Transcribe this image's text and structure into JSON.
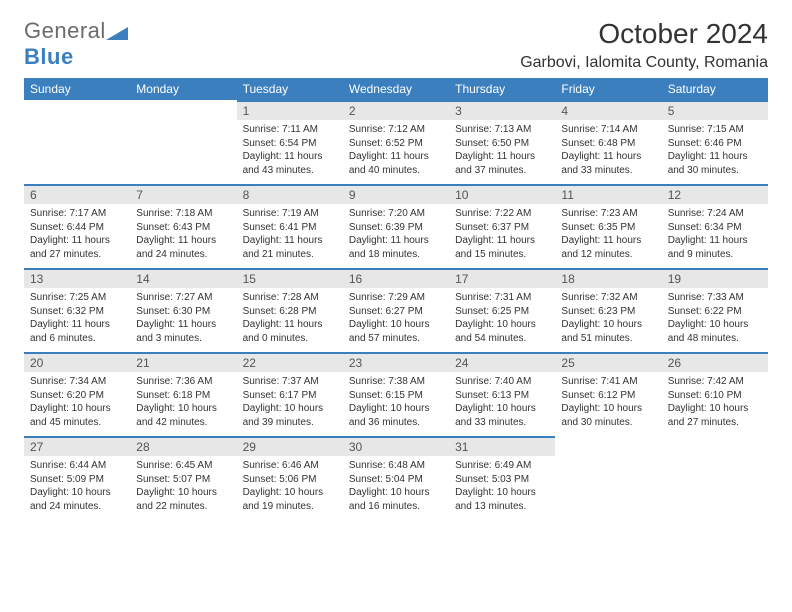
{
  "brand": {
    "general": "General",
    "blue": "Blue"
  },
  "title": "October 2024",
  "location": "Garbovi, Ialomita County, Romania",
  "colors": {
    "accent": "#3b7fbf",
    "header_bg": "#3b7fbf",
    "header_text": "#ffffff",
    "daybar_bg": "#e7e7e7",
    "daybar_border": "#3b7fbf",
    "body_text": "#333333",
    "muted_text": "#6b6b6b",
    "background": "#ffffff"
  },
  "wd": [
    "Sunday",
    "Monday",
    "Tuesday",
    "Wednesday",
    "Thursday",
    "Friday",
    "Saturday"
  ],
  "weeks": [
    [
      {
        "n": "",
        "s": "",
        "u": "",
        "d": ""
      },
      {
        "n": "",
        "s": "",
        "u": "",
        "d": ""
      },
      {
        "n": "1",
        "s": "Sunrise: 7:11 AM",
        "u": "Sunset: 6:54 PM",
        "d": "Daylight: 11 hours and 43 minutes."
      },
      {
        "n": "2",
        "s": "Sunrise: 7:12 AM",
        "u": "Sunset: 6:52 PM",
        "d": "Daylight: 11 hours and 40 minutes."
      },
      {
        "n": "3",
        "s": "Sunrise: 7:13 AM",
        "u": "Sunset: 6:50 PM",
        "d": "Daylight: 11 hours and 37 minutes."
      },
      {
        "n": "4",
        "s": "Sunrise: 7:14 AM",
        "u": "Sunset: 6:48 PM",
        "d": "Daylight: 11 hours and 33 minutes."
      },
      {
        "n": "5",
        "s": "Sunrise: 7:15 AM",
        "u": "Sunset: 6:46 PM",
        "d": "Daylight: 11 hours and 30 minutes."
      }
    ],
    [
      {
        "n": "6",
        "s": "Sunrise: 7:17 AM",
        "u": "Sunset: 6:44 PM",
        "d": "Daylight: 11 hours and 27 minutes."
      },
      {
        "n": "7",
        "s": "Sunrise: 7:18 AM",
        "u": "Sunset: 6:43 PM",
        "d": "Daylight: 11 hours and 24 minutes."
      },
      {
        "n": "8",
        "s": "Sunrise: 7:19 AM",
        "u": "Sunset: 6:41 PM",
        "d": "Daylight: 11 hours and 21 minutes."
      },
      {
        "n": "9",
        "s": "Sunrise: 7:20 AM",
        "u": "Sunset: 6:39 PM",
        "d": "Daylight: 11 hours and 18 minutes."
      },
      {
        "n": "10",
        "s": "Sunrise: 7:22 AM",
        "u": "Sunset: 6:37 PM",
        "d": "Daylight: 11 hours and 15 minutes."
      },
      {
        "n": "11",
        "s": "Sunrise: 7:23 AM",
        "u": "Sunset: 6:35 PM",
        "d": "Daylight: 11 hours and 12 minutes."
      },
      {
        "n": "12",
        "s": "Sunrise: 7:24 AM",
        "u": "Sunset: 6:34 PM",
        "d": "Daylight: 11 hours and 9 minutes."
      }
    ],
    [
      {
        "n": "13",
        "s": "Sunrise: 7:25 AM",
        "u": "Sunset: 6:32 PM",
        "d": "Daylight: 11 hours and 6 minutes."
      },
      {
        "n": "14",
        "s": "Sunrise: 7:27 AM",
        "u": "Sunset: 6:30 PM",
        "d": "Daylight: 11 hours and 3 minutes."
      },
      {
        "n": "15",
        "s": "Sunrise: 7:28 AM",
        "u": "Sunset: 6:28 PM",
        "d": "Daylight: 11 hours and 0 minutes."
      },
      {
        "n": "16",
        "s": "Sunrise: 7:29 AM",
        "u": "Sunset: 6:27 PM",
        "d": "Daylight: 10 hours and 57 minutes."
      },
      {
        "n": "17",
        "s": "Sunrise: 7:31 AM",
        "u": "Sunset: 6:25 PM",
        "d": "Daylight: 10 hours and 54 minutes."
      },
      {
        "n": "18",
        "s": "Sunrise: 7:32 AM",
        "u": "Sunset: 6:23 PM",
        "d": "Daylight: 10 hours and 51 minutes."
      },
      {
        "n": "19",
        "s": "Sunrise: 7:33 AM",
        "u": "Sunset: 6:22 PM",
        "d": "Daylight: 10 hours and 48 minutes."
      }
    ],
    [
      {
        "n": "20",
        "s": "Sunrise: 7:34 AM",
        "u": "Sunset: 6:20 PM",
        "d": "Daylight: 10 hours and 45 minutes."
      },
      {
        "n": "21",
        "s": "Sunrise: 7:36 AM",
        "u": "Sunset: 6:18 PM",
        "d": "Daylight: 10 hours and 42 minutes."
      },
      {
        "n": "22",
        "s": "Sunrise: 7:37 AM",
        "u": "Sunset: 6:17 PM",
        "d": "Daylight: 10 hours and 39 minutes."
      },
      {
        "n": "23",
        "s": "Sunrise: 7:38 AM",
        "u": "Sunset: 6:15 PM",
        "d": "Daylight: 10 hours and 36 minutes."
      },
      {
        "n": "24",
        "s": "Sunrise: 7:40 AM",
        "u": "Sunset: 6:13 PM",
        "d": "Daylight: 10 hours and 33 minutes."
      },
      {
        "n": "25",
        "s": "Sunrise: 7:41 AM",
        "u": "Sunset: 6:12 PM",
        "d": "Daylight: 10 hours and 30 minutes."
      },
      {
        "n": "26",
        "s": "Sunrise: 7:42 AM",
        "u": "Sunset: 6:10 PM",
        "d": "Daylight: 10 hours and 27 minutes."
      }
    ],
    [
      {
        "n": "27",
        "s": "Sunrise: 6:44 AM",
        "u": "Sunset: 5:09 PM",
        "d": "Daylight: 10 hours and 24 minutes."
      },
      {
        "n": "28",
        "s": "Sunrise: 6:45 AM",
        "u": "Sunset: 5:07 PM",
        "d": "Daylight: 10 hours and 22 minutes."
      },
      {
        "n": "29",
        "s": "Sunrise: 6:46 AM",
        "u": "Sunset: 5:06 PM",
        "d": "Daylight: 10 hours and 19 minutes."
      },
      {
        "n": "30",
        "s": "Sunrise: 6:48 AM",
        "u": "Sunset: 5:04 PM",
        "d": "Daylight: 10 hours and 16 minutes."
      },
      {
        "n": "31",
        "s": "Sunrise: 6:49 AM",
        "u": "Sunset: 5:03 PM",
        "d": "Daylight: 10 hours and 13 minutes."
      },
      {
        "n": "",
        "s": "",
        "u": "",
        "d": ""
      },
      {
        "n": "",
        "s": "",
        "u": "",
        "d": ""
      }
    ]
  ]
}
